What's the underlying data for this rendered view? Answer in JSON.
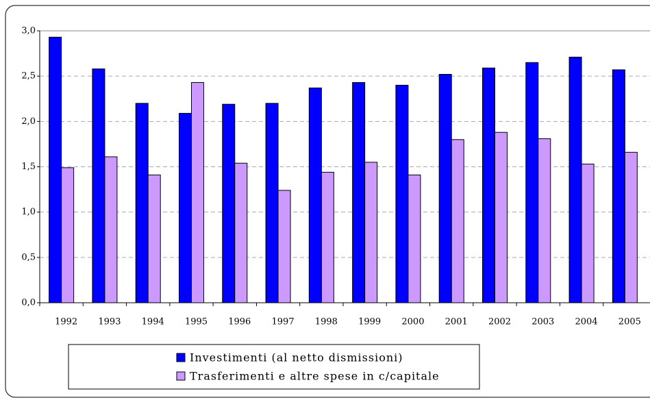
{
  "chart_data": {
    "type": "bar",
    "categories": [
      "1992",
      "1993",
      "1994",
      "1995",
      "1996",
      "1997",
      "1998",
      "1999",
      "2000",
      "2001",
      "2002",
      "2003",
      "2004",
      "2005"
    ],
    "series": [
      {
        "name": "Investimenti (al netto dismissioni)",
        "color": "#0000ff",
        "values": [
          2.93,
          2.58,
          2.2,
          2.09,
          2.19,
          2.2,
          2.37,
          2.43,
          2.4,
          2.52,
          2.59,
          2.65,
          2.71,
          2.57
        ]
      },
      {
        "name": "Trasferimenti e altre spese in c/capitale",
        "color": "#cc99ff",
        "values": [
          1.49,
          1.61,
          1.41,
          2.43,
          1.54,
          1.24,
          1.44,
          1.55,
          1.41,
          1.8,
          1.88,
          1.81,
          1.53,
          1.66
        ]
      }
    ],
    "ylim": [
      0,
      3
    ],
    "yticks": [
      {
        "value": 0,
        "label": "0,0"
      },
      {
        "value": 0.5,
        "label": "0,5"
      },
      {
        "value": 1,
        "label": "1,0"
      },
      {
        "value": 1.5,
        "label": "1,5"
      },
      {
        "value": 2,
        "label": "2,0"
      },
      {
        "value": 2.5,
        "label": "2,5"
      },
      {
        "value": 3,
        "label": "3,0"
      }
    ],
    "grid": true,
    "legend": "bottom"
  }
}
